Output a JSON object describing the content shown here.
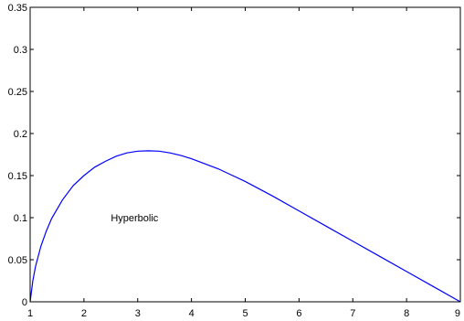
{
  "chart_data": {
    "type": "line",
    "title": "",
    "xlabel": "",
    "ylabel": "",
    "xlim": [
      1,
      9
    ],
    "ylim": [
      0,
      0.35
    ],
    "x_ticks": [
      "1",
      "2",
      "3",
      "4",
      "5",
      "6",
      "7",
      "8",
      "9"
    ],
    "y_ticks": [
      "0",
      "0.05",
      "0.1",
      "0.15",
      "0.2",
      "0.25",
      "0.3",
      "0.35"
    ],
    "grid": false,
    "legend": "none",
    "series": [
      {
        "color": "#0000ff",
        "x": [
          1.0,
          1.05,
          1.1,
          1.2,
          1.3,
          1.4,
          1.6,
          1.8,
          2.0,
          2.2,
          2.4,
          2.6,
          2.8,
          3.0,
          3.2,
          3.4,
          3.6,
          3.8,
          4.0,
          4.5,
          5.0,
          5.5,
          6.0,
          6.5,
          7.0,
          7.5,
          8.0,
          8.5,
          9.0
        ],
        "y": [
          0.0,
          0.025,
          0.042,
          0.066,
          0.084,
          0.099,
          0.121,
          0.138,
          0.15,
          0.16,
          0.167,
          0.173,
          0.177,
          0.179,
          0.1795,
          0.179,
          0.177,
          0.174,
          0.17,
          0.158,
          0.143,
          0.126,
          0.108,
          0.09,
          0.072,
          0.054,
          0.036,
          0.018,
          0.0
        ]
      }
    ],
    "annotations": [
      {
        "text": "Hyperbolic",
        "x": 2.5,
        "y": 0.1
      }
    ]
  }
}
